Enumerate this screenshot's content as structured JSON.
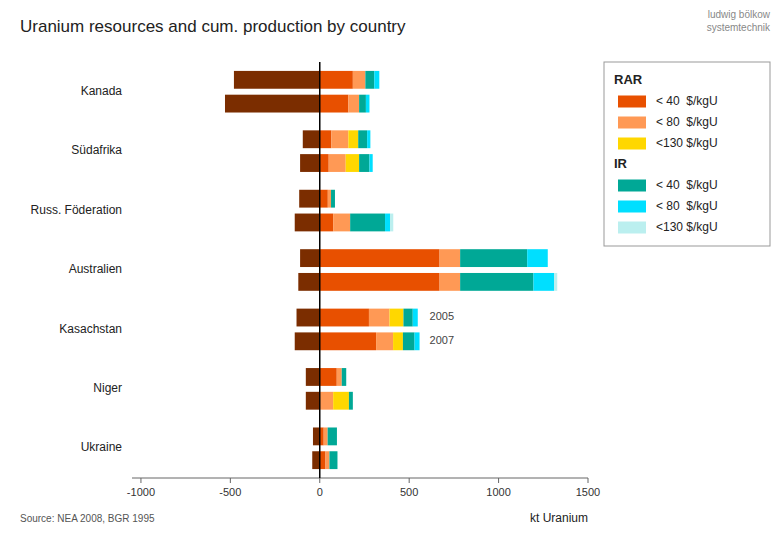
{
  "chart_data": {
    "type": "bar",
    "orientation": "horizontal",
    "stacked": true,
    "title": "Uranium resources and cum. production by country",
    "x_label": "kt Uranium",
    "source": "Source: NEA 2008, BGR 1995",
    "credit": "ludwig bölkow\nsystemtechnik",
    "categories": [
      "Kanada",
      "Südafrika",
      "Russ. Föderation",
      "Australien",
      "Kasachstan",
      "Niger",
      "Ukraine"
    ],
    "bar_labels": [
      "2005",
      "2007"
    ],
    "series": [
      {
        "color": "#7B2D00",
        "values": [
          [
            -480,
            -530
          ],
          [
            -95,
            -110
          ],
          [
            -115,
            -140
          ],
          [
            -110,
            -120
          ],
          [
            -130,
            -140
          ],
          [
            -78,
            -78
          ],
          [
            -38,
            -42
          ]
        ]
      },
      {
        "name": "< 40  $/kgU",
        "group": "RAR",
        "color": "#E85000",
        "values": [
          [
            185,
            160
          ],
          [
            65,
            50
          ],
          [
            45,
            75
          ],
          [
            670,
            670
          ],
          [
            275,
            315
          ],
          [
            95,
            0
          ],
          [
            22,
            32
          ]
        ]
      },
      {
        "name": "< 80  $/kgU",
        "group": "RAR",
        "color": "#FF9955",
        "values": [
          [
            70,
            60
          ],
          [
            95,
            95
          ],
          [
            18,
            95
          ],
          [
            115,
            115
          ],
          [
            115,
            95
          ],
          [
            28,
            75
          ],
          [
            22,
            22
          ]
        ]
      },
      {
        "name": "<130 $/kgU",
        "group": "RAR",
        "color": "#FFD700",
        "values": [
          [
            0,
            0
          ],
          [
            55,
            75
          ],
          [
            0,
            0
          ],
          [
            0,
            0
          ],
          [
            78,
            55
          ],
          [
            0,
            88
          ],
          [
            0,
            0
          ]
        ]
      },
      {
        "name": "< 40  $/kgU",
        "group": "IR",
        "color": "#00A896",
        "values": [
          [
            50,
            38
          ],
          [
            50,
            58
          ],
          [
            22,
            195
          ],
          [
            375,
            410
          ],
          [
            52,
            65
          ],
          [
            25,
            22
          ],
          [
            52,
            45
          ]
        ]
      },
      {
        "name": "< 80  $/kgU",
        "group": "IR",
        "color": "#00DFFF",
        "values": [
          [
            28,
            20
          ],
          [
            18,
            18
          ],
          [
            0,
            28
          ],
          [
            115,
            115
          ],
          [
            28,
            28
          ],
          [
            0,
            0
          ],
          [
            0,
            0
          ]
        ]
      },
      {
        "name": "<130 $/kgU",
        "group": "IR",
        "color": "#BBEFEF",
        "values": [
          [
            0,
            0
          ],
          [
            0,
            0
          ],
          [
            0,
            18
          ],
          [
            0,
            18
          ],
          [
            0,
            0
          ],
          [
            0,
            0
          ],
          [
            0,
            0
          ]
        ]
      }
    ],
    "xlim": [
      -1050,
      1500
    ],
    "xticks": [
      -1000,
      -500,
      0,
      500,
      1000,
      1500
    ],
    "legend": "upper right"
  }
}
